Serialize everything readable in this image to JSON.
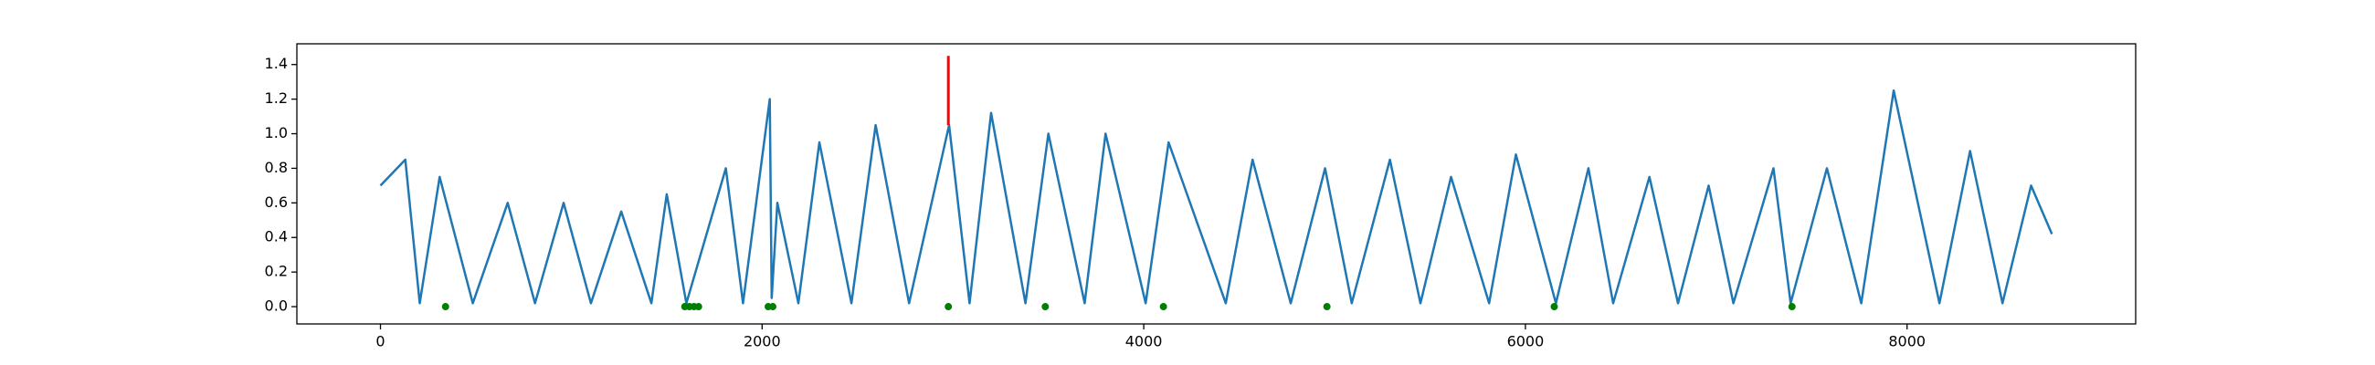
{
  "chart_data": {
    "type": "line",
    "xlim": [
      -438,
      9198
    ],
    "ylim": [
      -0.1,
      1.52
    ],
    "xticks": [
      0,
      2000,
      4000,
      6000,
      8000
    ],
    "yticks": [
      {
        "value": 0,
        "label": "0.0"
      },
      {
        "value": 0.2,
        "label": "0.2"
      },
      {
        "value": 0.4,
        "label": "0.4"
      },
      {
        "value": 0.6,
        "label": "0.6"
      },
      {
        "value": 0.8,
        "label": "0.8"
      },
      {
        "value": 1,
        "label": "1.0"
      },
      {
        "value": 1.2,
        "label": "1.2"
      },
      {
        "value": 1.4,
        "label": "1.4"
      }
    ],
    "series": [
      {
        "style": "line",
        "color": "#1f77b4",
        "x": [
          0,
          130,
          206,
          310,
          484,
          667,
          810,
          960,
          1103,
          1262,
          1420,
          1500,
          1603,
          1810,
          1900,
          2040,
          2050,
          2080,
          2190,
          2300,
          2468,
          2595,
          2770,
          2980,
          3087,
          3200,
          3380,
          3500,
          3690,
          3800,
          4010,
          4130,
          4430,
          4570,
          4770,
          4950,
          5090,
          5290,
          5450,
          5610,
          5810,
          5950,
          6160,
          6330,
          6460,
          6650,
          6800,
          6960,
          7090,
          7300,
          7390,
          7580,
          7760,
          7930,
          8170,
          8330,
          8500,
          8650,
          8759
        ],
        "values": [
          0.7,
          0.85,
          0.02,
          0.75,
          0.02,
          0.6,
          0.02,
          0.6,
          0.02,
          0.55,
          0.02,
          0.65,
          0.02,
          0.8,
          0.02,
          1.2,
          0.05,
          0.6,
          0.02,
          0.95,
          0.02,
          1.05,
          0.02,
          1.05,
          0.02,
          1.12,
          0.02,
          1.0,
          0.02,
          1.0,
          0.02,
          0.95,
          0.02,
          0.85,
          0.02,
          0.8,
          0.02,
          0.85,
          0.02,
          0.75,
          0.02,
          0.88,
          0.02,
          0.8,
          0.02,
          0.75,
          0.02,
          0.7,
          0.02,
          0.8,
          0.02,
          0.8,
          0.02,
          1.25,
          0.02,
          0.9,
          0.02,
          0.7,
          0.42
        ]
      },
      {
        "style": "line",
        "color": "#ff0000",
        "x": [
          2976,
          2976
        ],
        "values": [
          1.05,
          1.45
        ]
      },
      {
        "style": "dots",
        "color": "#008000",
        "x": [
          341,
          1595,
          1619,
          1643,
          1667,
          2032,
          2056,
          2976,
          3484,
          4103,
          4960,
          6151,
          7397
        ],
        "values": [
          0,
          0,
          0,
          0,
          0,
          0,
          0,
          0,
          0,
          0,
          0,
          0,
          0
        ]
      }
    ]
  }
}
